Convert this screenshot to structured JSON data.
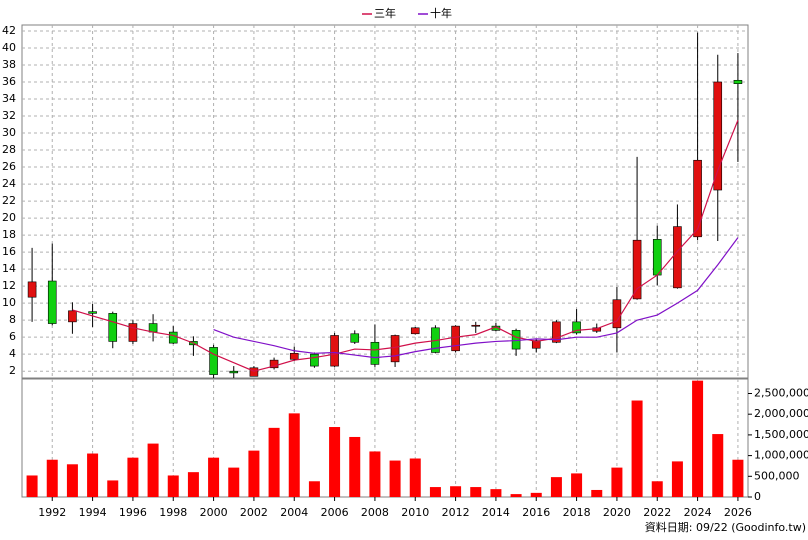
{
  "chart_data": [
    {
      "type": "candlestick",
      "x": [
        1991,
        1992,
        1993,
        1994,
        1995,
        1996,
        1997,
        1998,
        1999,
        2000,
        2001,
        2002,
        2003,
        2004,
        2005,
        2006,
        2007,
        2008,
        2009,
        2010,
        2011,
        2012,
        2013,
        2014,
        2015,
        2016,
        2017,
        2018,
        2019,
        2020,
        2021,
        2022,
        2023,
        2024,
        2025,
        2026
      ],
      "open": [
        10.7,
        12.6,
        7.8,
        9.0,
        8.8,
        5.5,
        7.6,
        6.6,
        5.5,
        4.8,
        2.0,
        1.4,
        2.4,
        3.4,
        4.0,
        2.6,
        6.4,
        5.4,
        3.1,
        6.4,
        7.1,
        4.4,
        7.3,
        7.3,
        6.8,
        4.7,
        5.4,
        7.8,
        6.7,
        7.1,
        10.5,
        17.5,
        11.8,
        17.8,
        23.3,
        36.2
      ],
      "high": [
        16.5,
        17.0,
        10.1,
        9.9,
        9.0,
        8.0,
        8.7,
        7.3,
        6.1,
        5.1,
        2.6,
        2.6,
        3.6,
        4.9,
        4.2,
        6.5,
        6.8,
        7.5,
        6.3,
        7.2,
        7.4,
        7.4,
        7.8,
        7.7,
        7.0,
        5.8,
        8.0,
        9.3,
        7.6,
        11.9,
        27.2,
        19.1,
        21.6,
        41.8,
        39.2,
        39.4
      ],
      "low": [
        7.8,
        7.4,
        6.4,
        7.2,
        4.7,
        5.2,
        5.5,
        5.2,
        3.8,
        1.2,
        1.2,
        1.4,
        2.2,
        3.2,
        2.4,
        2.5,
        5.2,
        2.5,
        2.5,
        6.3,
        4.1,
        4.2,
        6.5,
        6.7,
        3.8,
        4.2,
        5.3,
        6.3,
        6.5,
        4.2,
        10.4,
        12.1,
        11.7,
        17.4,
        17.3,
        26.6
      ],
      "close": [
        12.5,
        7.6,
        9.1,
        8.8,
        5.5,
        7.6,
        6.6,
        5.3,
        5.1,
        1.6,
        1.8,
        2.4,
        3.3,
        4.1,
        2.6,
        6.2,
        5.4,
        2.8,
        6.2,
        7.1,
        4.2,
        7.3,
        7.4,
        6.8,
        4.6,
        5.6,
        7.8,
        6.5,
        7.1,
        10.4,
        17.4,
        13.3,
        19.0,
        26.8,
        36.0,
        35.8
      ],
      "up_color": "#e01010",
      "down_color": "#10d010",
      "series": [
        {
          "name": "三年",
          "color": "#d0104a",
          "values": [
            null,
            null,
            9.2,
            8.5,
            7.8,
            7.1,
            6.6,
            6.2,
            5.3,
            4.0,
            3.0,
            2.0,
            2.6,
            3.3,
            3.6,
            4.0,
            4.6,
            4.5,
            4.8,
            5.3,
            5.6,
            6.0,
            6.3,
            7.2,
            6.0,
            5.5,
            5.9,
            6.8,
            7.0,
            7.9,
            11.7,
            13.3,
            16.1,
            18.7,
            25.6,
            31.5
          ]
        },
        {
          "name": "十年",
          "color": "#8010c8",
          "values": [
            null,
            null,
            null,
            null,
            null,
            null,
            null,
            null,
            null,
            6.9,
            6.0,
            5.5,
            5.0,
            4.4,
            4.1,
            4.2,
            3.9,
            3.6,
            3.8,
            4.3,
            4.7,
            5.0,
            5.3,
            5.5,
            5.6,
            5.8,
            5.7,
            6.0,
            6.0,
            6.5,
            8.0,
            8.6,
            10.0,
            11.5,
            14.5,
            17.7
          ]
        }
      ],
      "xlim": [
        1990.5,
        2026.5
      ],
      "xticks": [
        1992,
        1994,
        1996,
        1998,
        2000,
        2002,
        2004,
        2006,
        2008,
        2010,
        2012,
        2014,
        2016,
        2018,
        2020,
        2022,
        2024,
        2026
      ],
      "ylim": [
        1.2,
        42.7
      ],
      "yticks": [
        2,
        4,
        6,
        8,
        10,
        12,
        14,
        16,
        18,
        20,
        22,
        24,
        26,
        28,
        30,
        32,
        34,
        36,
        38,
        40,
        42
      ],
      "grid": true,
      "legend": "top"
    },
    {
      "type": "bar",
      "x": [
        1991,
        1992,
        1993,
        1994,
        1995,
        1996,
        1997,
        1998,
        1999,
        2000,
        2001,
        2002,
        2003,
        2004,
        2005,
        2006,
        2007,
        2008,
        2009,
        2010,
        2011,
        2012,
        2013,
        2014,
        2015,
        2016,
        2017,
        2018,
        2019,
        2020,
        2021,
        2022,
        2023,
        2024,
        2025,
        2026
      ],
      "values": [
        520000,
        900000,
        790000,
        1050000,
        400000,
        950000,
        1290000,
        520000,
        600000,
        950000,
        710000,
        1120000,
        1670000,
        2020000,
        380000,
        1690000,
        1450000,
        1100000,
        880000,
        930000,
        240000,
        260000,
        240000,
        190000,
        70000,
        100000,
        480000,
        570000,
        170000,
        710000,
        2330000,
        380000,
        860000,
        2810000,
        1520000,
        900000
      ],
      "color": "#ff0000",
      "xlim": [
        1990.5,
        2026.5
      ],
      "xticks": [
        1992,
        1994,
        1996,
        1998,
        2000,
        2002,
        2004,
        2006,
        2008,
        2010,
        2012,
        2014,
        2016,
        2018,
        2020,
        2022,
        2024,
        2026
      ],
      "ylim": [
        0,
        2850000
      ],
      "yticks": [
        0,
        {
          "value": 500000,
          "label": "500,000"
        },
        {
          "value": 1000000,
          "label": "1,000,000"
        },
        {
          "value": 1500000,
          "label": "1,500,000"
        },
        {
          "value": 2000000,
          "label": "2,000,000"
        },
        {
          "value": 2500000,
          "label": "2,500,000"
        }
      ],
      "grid": "x"
    }
  ],
  "footer": "資料日期: 09/22 (Goodinfo.tw)"
}
